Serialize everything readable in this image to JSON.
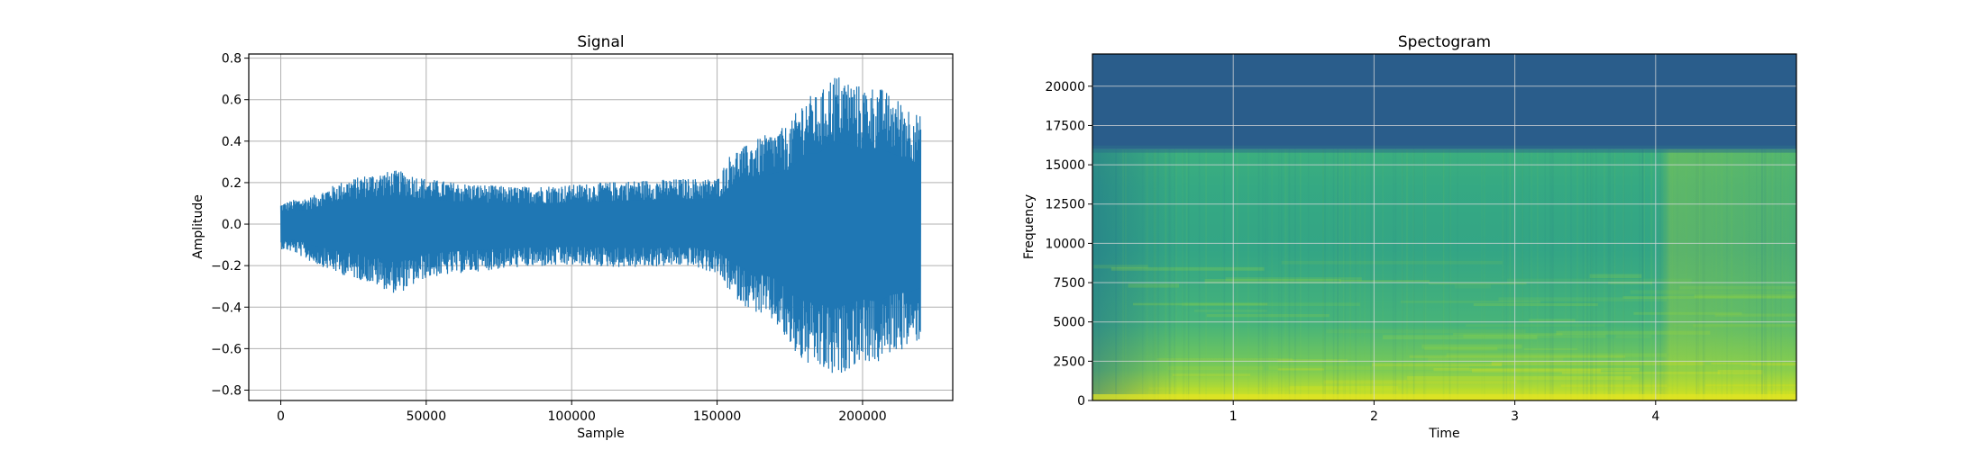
{
  "chart_data": [
    {
      "type": "line",
      "title": "Signal",
      "xlabel": "Sample",
      "ylabel": "Amplitude",
      "xlim": [
        -11000,
        231000
      ],
      "ylim": [
        -0.85,
        0.82
      ],
      "grid": true,
      "color": "#1f77b4",
      "xticks": [
        0,
        50000,
        100000,
        150000,
        200000
      ],
      "yticks": [
        -0.8,
        -0.6,
        -0.4,
        -0.2,
        0.0,
        0.2,
        0.4,
        0.6,
        0.8
      ],
      "xtick_labels": [
        "0",
        "50000",
        "100000",
        "150000",
        "200000"
      ],
      "ytick_labels": [
        "−0.8",
        "−0.6",
        "−0.4",
        "−0.2",
        "0.0",
        "0.2",
        "0.4",
        "0.6",
        "0.8"
      ],
      "envelope": {
        "x": [
          0,
          5000,
          10000,
          20000,
          30000,
          40000,
          50000,
          60000,
          80000,
          100000,
          120000,
          140000,
          150000,
          155000,
          160000,
          165000,
          170000,
          175000,
          180000,
          185000,
          190000,
          195000,
          200000,
          205000,
          210000,
          215000,
          220000
        ],
        "upper": [
          0.1,
          0.12,
          0.13,
          0.2,
          0.24,
          0.26,
          0.22,
          0.2,
          0.18,
          0.19,
          0.21,
          0.22,
          0.22,
          0.35,
          0.38,
          0.42,
          0.45,
          0.48,
          0.62,
          0.62,
          0.73,
          0.7,
          0.66,
          0.67,
          0.62,
          0.58,
          0.52
        ],
        "lower": [
          -0.12,
          -0.14,
          -0.18,
          -0.24,
          -0.28,
          -0.34,
          -0.26,
          -0.24,
          -0.21,
          -0.2,
          -0.21,
          -0.2,
          -0.24,
          -0.34,
          -0.4,
          -0.44,
          -0.48,
          -0.6,
          -0.68,
          -0.7,
          -0.75,
          -0.7,
          -0.66,
          -0.68,
          -0.62,
          -0.6,
          -0.56
        ]
      }
    },
    {
      "type": "heatmap",
      "title": "Spectogram",
      "xlabel": "Time",
      "ylabel": "Frequency",
      "xlim": [
        0,
        5.0
      ],
      "ylim": [
        0,
        22050
      ],
      "grid": true,
      "colormap": "viridis",
      "xticks": [
        1,
        2,
        3,
        4
      ],
      "yticks": [
        0,
        2500,
        5000,
        7500,
        10000,
        12500,
        15000,
        17500,
        20000
      ],
      "xtick_labels": [
        "1",
        "2",
        "3",
        "4"
      ],
      "ytick_labels": [
        "0",
        "2500",
        "5000",
        "7500",
        "10000",
        "12500",
        "15000",
        "17500",
        "20000"
      ],
      "cutoff_frequency": 16000,
      "colors": {
        "low": "#2a5d8b",
        "mid_dark": "#2a8c8a",
        "mid": "#33a585",
        "mid_light": "#5cbf6a",
        "high": "#b8dc2f",
        "peak": "#e0e423"
      }
    }
  ]
}
